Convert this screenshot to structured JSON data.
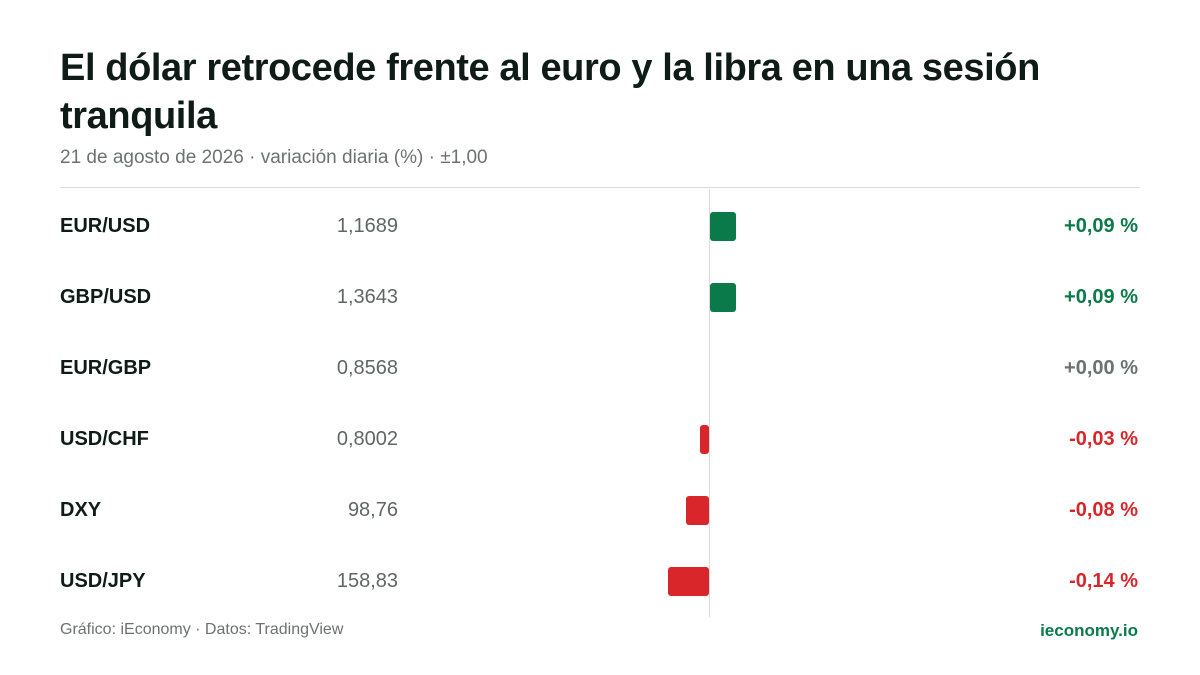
{
  "title": "El dólar retrocede frente al euro y la libra en una sesión tranquila",
  "subtitle": "21 de agosto de 2026 · variación diaria (%) · ±1,00",
  "chart_data": {
    "type": "bar",
    "orientation": "horizontal",
    "categories": [
      "EUR/USD",
      "GBP/USD",
      "EUR/GBP",
      "USD/CHF",
      "DXY",
      "USD/JPY"
    ],
    "prices": [
      "1,1689",
      "1,3643",
      "0,8568",
      "0,8002",
      "98,76",
      "158,83"
    ],
    "values": [
      0.09,
      0.09,
      0.0,
      -0.03,
      -0.08,
      -0.14
    ],
    "value_labels": [
      "+0,09 %",
      "+0,09 %",
      "+0,00 %",
      "-0,03 %",
      "-0,08 %",
      "-0,14 %"
    ],
    "xlim": [
      -1,
      1
    ],
    "grid": false,
    "colors": {
      "positive": "#0b7a4b",
      "negative": "#d9262b",
      "neutral": "#6b7370"
    }
  },
  "footer": {
    "credit": "Gráfico: iEconomy · Datos: TradingView",
    "brand": "ieconomy.io",
    "brand_color": "#0b7a4b"
  }
}
